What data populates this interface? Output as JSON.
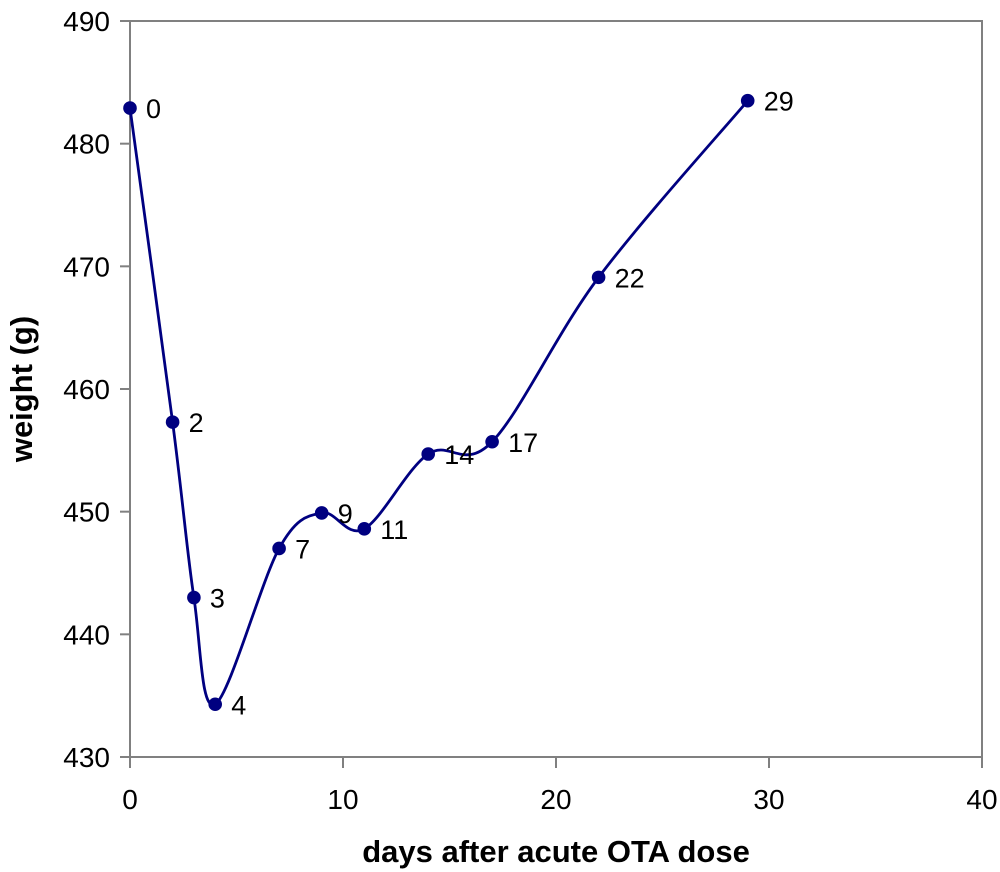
{
  "chart_data": {
    "type": "line",
    "title": "",
    "xlabel": "days after acute OTA dose",
    "ylabel": "weight (g)",
    "xlim": [
      0,
      40
    ],
    "ylim": [
      430,
      490
    ],
    "x_ticks": [
      0,
      10,
      20,
      30,
      40
    ],
    "y_ticks": [
      430,
      440,
      450,
      460,
      470,
      480,
      490
    ],
    "grid": false,
    "legend": false,
    "smooth": true,
    "series": [
      {
        "name": "weight",
        "x": [
          0,
          2,
          3,
          4,
          7,
          9,
          11,
          14,
          17,
          22,
          29
        ],
        "y": [
          482.9,
          457.3,
          443.0,
          434.3,
          447.0,
          449.9,
          448.6,
          454.7,
          455.7,
          469.1,
          483.5
        ],
        "point_labels": [
          "0",
          "2",
          "3",
          "4",
          "7",
          "9",
          "11",
          "14",
          "17",
          "22",
          "29"
        ],
        "marker": "circle"
      }
    ],
    "colors": {
      "line": "#000080",
      "marker": "#000080",
      "axis": "#808080",
      "text": "#000000",
      "background": "#ffffff"
    }
  }
}
